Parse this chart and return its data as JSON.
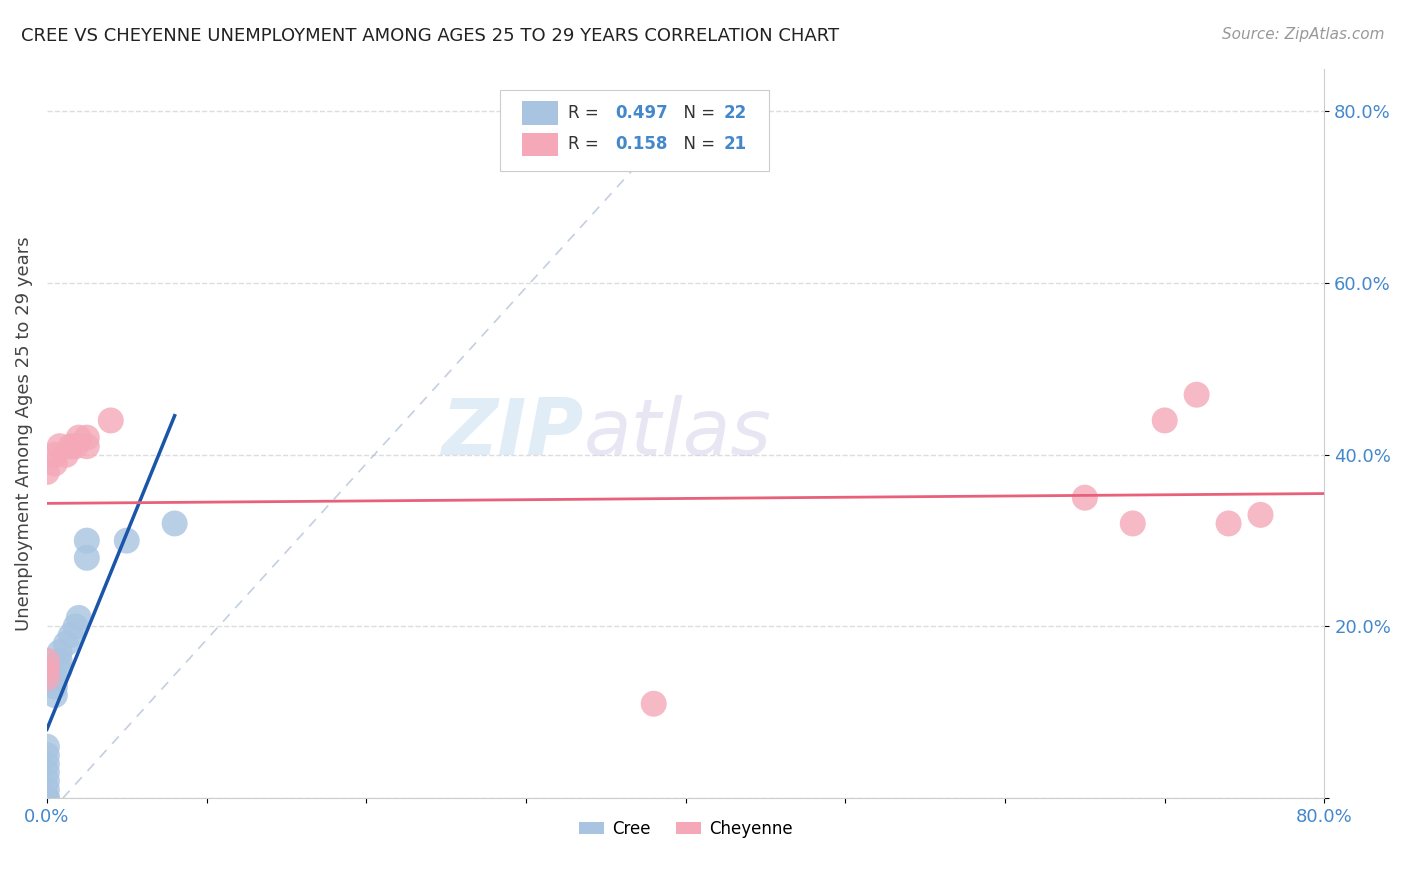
{
  "title": "CREE VS CHEYENNE UNEMPLOYMENT AMONG AGES 25 TO 29 YEARS CORRELATION CHART",
  "source": "Source: ZipAtlas.com",
  "ylabel": "Unemployment Among Ages 25 to 29 years",
  "xlim": [
    0.0,
    0.8
  ],
  "ylim": [
    0.0,
    0.85
  ],
  "cree_color": "#a8c4e0",
  "cheyenne_color": "#f4a8b8",
  "cree_line_color": "#1a55aa",
  "cheyenne_line_color": "#e8607a",
  "R_cree": 0.497,
  "N_cree": 22,
  "R_cheyenne": 0.158,
  "N_cheyenne": 21,
  "cree_x": [
    0.0,
    0.0,
    0.0,
    0.0,
    0.0,
    0.0,
    0.0,
    0.0,
    0.005,
    0.005,
    0.005,
    0.008,
    0.008,
    0.008,
    0.012,
    0.015,
    0.018,
    0.02,
    0.025,
    0.025,
    0.05,
    0.08
  ],
  "cree_y": [
    0.0,
    0.0,
    0.01,
    0.02,
    0.03,
    0.04,
    0.05,
    0.06,
    0.12,
    0.13,
    0.14,
    0.15,
    0.16,
    0.17,
    0.18,
    0.19,
    0.2,
    0.21,
    0.28,
    0.3,
    0.3,
    0.32
  ],
  "cheyenne_x": [
    0.0,
    0.0,
    0.0,
    0.0,
    0.005,
    0.005,
    0.008,
    0.012,
    0.015,
    0.018,
    0.02,
    0.025,
    0.025,
    0.04,
    0.38,
    0.65,
    0.68,
    0.7,
    0.72,
    0.74,
    0.76
  ],
  "cheyenne_y": [
    0.14,
    0.15,
    0.16,
    0.38,
    0.39,
    0.4,
    0.41,
    0.4,
    0.41,
    0.41,
    0.42,
    0.41,
    0.42,
    0.44,
    0.11,
    0.35,
    0.32,
    0.44,
    0.47,
    0.32,
    0.33
  ],
  "watermark_zip": "ZIP",
  "watermark_atlas": "atlas",
  "background_color": "#ffffff",
  "grid_color": "#dddddd",
  "tick_color": "#4488cc",
  "label_color": "#444444"
}
